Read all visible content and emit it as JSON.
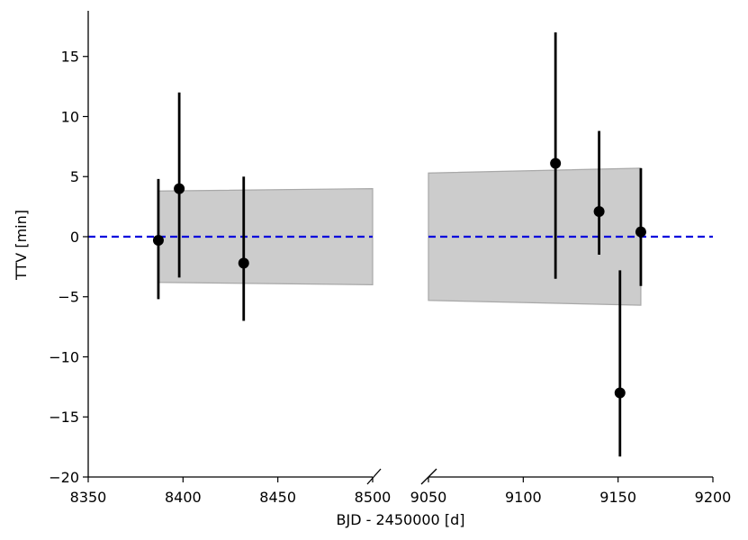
{
  "chart_data": {
    "type": "scatter",
    "xlabel": "BJD - 2450000 [d]",
    "ylabel": "TTV [min]",
    "broken_x_axis": true,
    "ylim": [
      -20,
      18.8
    ],
    "y_ticks": [
      15,
      10,
      5,
      0,
      -5,
      -10,
      -15,
      -20
    ],
    "y_tick_labels": [
      "15",
      "10",
      "5",
      "0",
      "−5",
      "−10",
      "−15",
      "−20"
    ],
    "panels": [
      {
        "xlim": [
          8350,
          8500
        ],
        "x_ticks": [
          8350,
          8400,
          8450,
          8500
        ],
        "x_tick_labels": [
          "8350",
          "8400",
          "8450",
          "8500"
        ],
        "band": {
          "x": [
            8387,
            8500
          ],
          "upper": [
            3.8,
            4.0
          ],
          "lower": [
            -3.8,
            -4.0
          ]
        },
        "reference_line": {
          "y": 0,
          "x": [
            8350,
            8500
          ]
        },
        "points": [
          {
            "x": 8387,
            "y": -0.3,
            "err_low": 4.9,
            "err_high": 5.1
          },
          {
            "x": 8398,
            "y": 4.0,
            "err_low": 7.4,
            "err_high": 8.0
          },
          {
            "x": 8432,
            "y": -2.2,
            "err_low": 4.8,
            "err_high": 7.2
          }
        ]
      },
      {
        "xlim": [
          9050,
          9200
        ],
        "x_ticks": [
          9050,
          9100,
          9150,
          9200
        ],
        "x_tick_labels": [
          "9050",
          "9100",
          "9150",
          "9200"
        ],
        "band": {
          "x": [
            9050,
            9162
          ],
          "upper": [
            5.3,
            5.7
          ],
          "lower": [
            -5.3,
            -5.7
          ]
        },
        "reference_line": {
          "y": 0,
          "x": [
            9050,
            9200
          ]
        },
        "points": [
          {
            "x": 9117,
            "y": 6.1,
            "err_low": 9.6,
            "err_high": 10.9
          },
          {
            "x": 9140,
            "y": 2.1,
            "err_low": 3.6,
            "err_high": 6.7
          },
          {
            "x": 9151,
            "y": -13.0,
            "err_low": 5.3,
            "err_high": 10.2
          },
          {
            "x": 9162,
            "y": 0.4,
            "err_low": 4.5,
            "err_high": 5.3
          }
        ]
      }
    ],
    "colors": {
      "points": "#000000",
      "band_fill": "#cccccc",
      "band_edge": "#a8a8a8",
      "reference_line": "#0000dd"
    }
  }
}
